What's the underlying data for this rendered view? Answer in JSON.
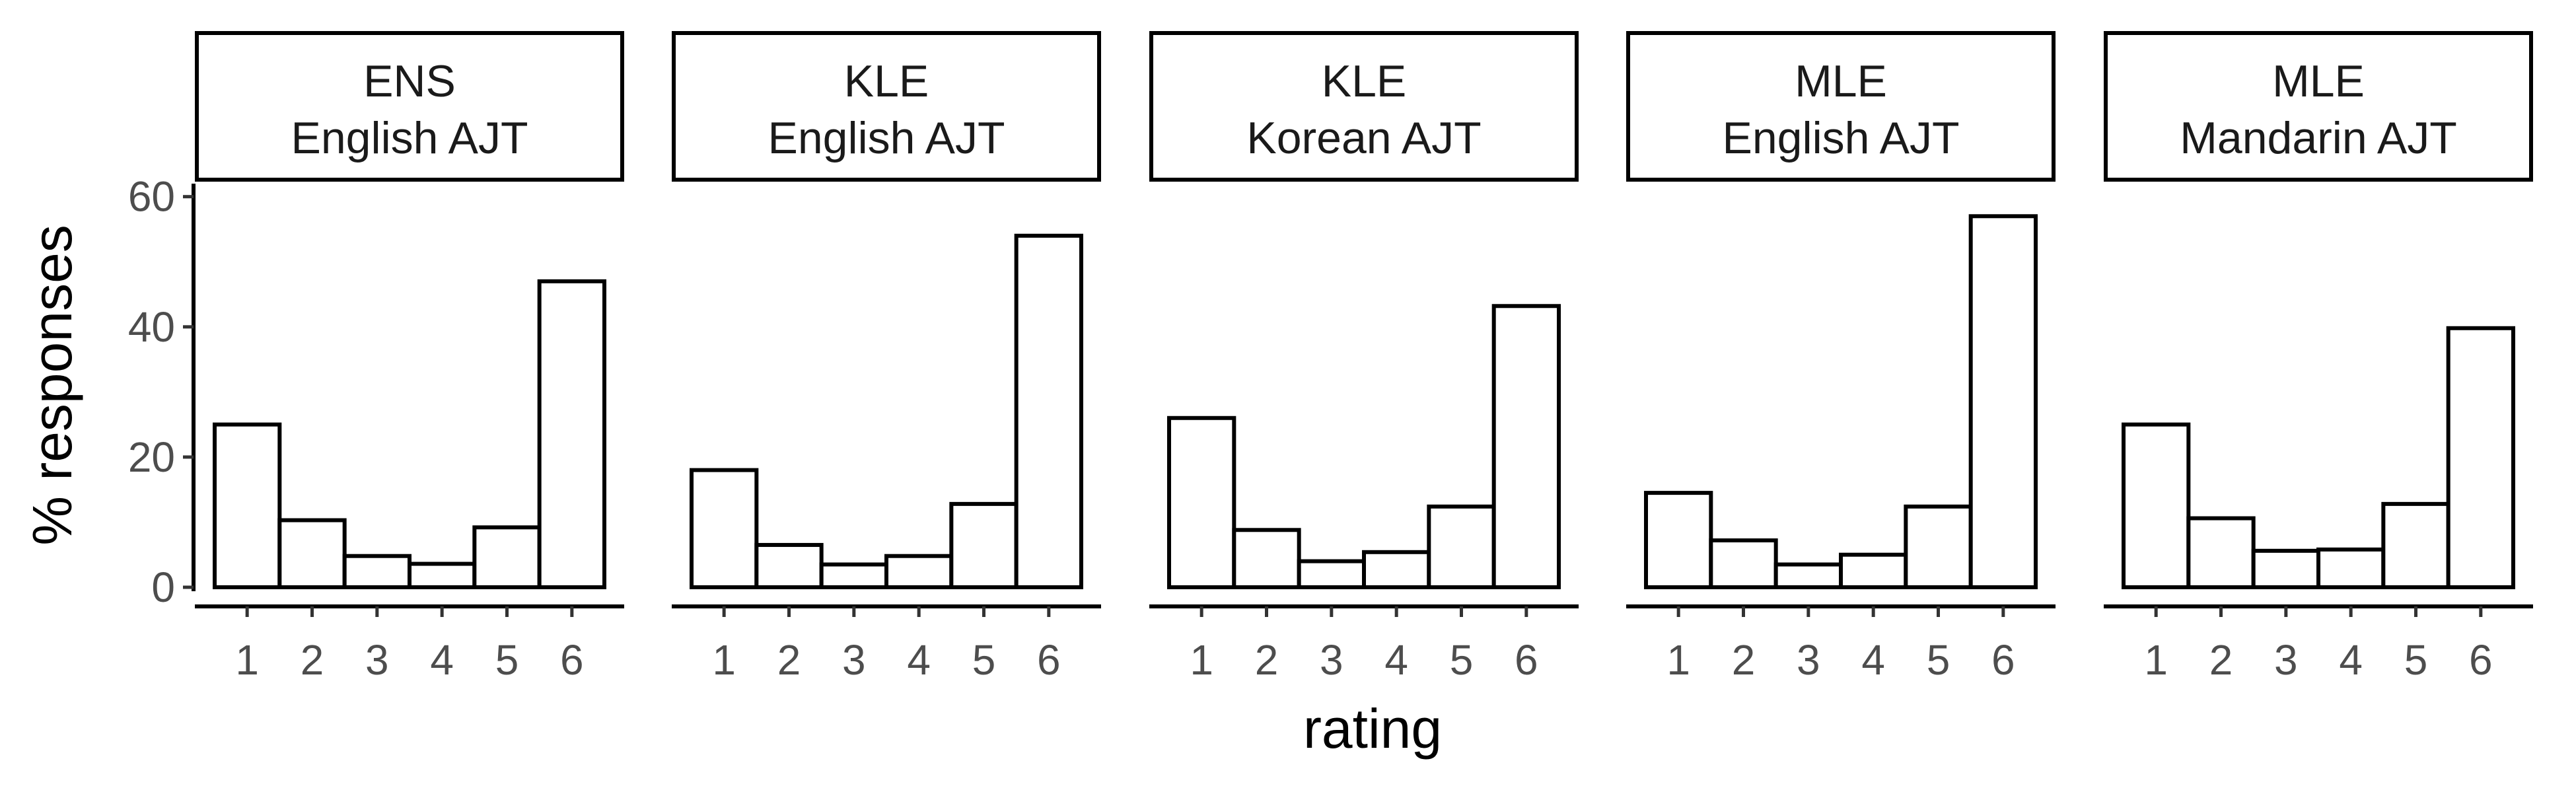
{
  "chart_data": {
    "type": "bar",
    "xlabel": "rating",
    "ylabel": "% responses",
    "ylim": [
      0,
      62
    ],
    "y_ticks": [
      0,
      20,
      40,
      60
    ],
    "categories": [
      "1",
      "2",
      "3",
      "4",
      "5",
      "6"
    ],
    "grid": false,
    "panels": [
      {
        "group": "ENS",
        "task": "English AJT",
        "values": [
          25,
          10.3,
          4.8,
          3.6,
          9.2,
          47
        ]
      },
      {
        "group": "KLE",
        "task": "English AJT",
        "values": [
          18,
          6.5,
          3.5,
          4.8,
          12.8,
          54
        ]
      },
      {
        "group": "KLE",
        "task": "Korean AJT",
        "values": [
          26,
          8.8,
          4.0,
          5.4,
          12.4,
          43.2
        ]
      },
      {
        "group": "MLE",
        "task": "English AJT",
        "values": [
          14.5,
          7.2,
          3.5,
          5.0,
          12.4,
          57
        ]
      },
      {
        "group": "MLE",
        "task": "Mandarin AJT",
        "values": [
          25,
          10.6,
          5.6,
          5.8,
          12.8,
          39.8
        ]
      }
    ]
  }
}
